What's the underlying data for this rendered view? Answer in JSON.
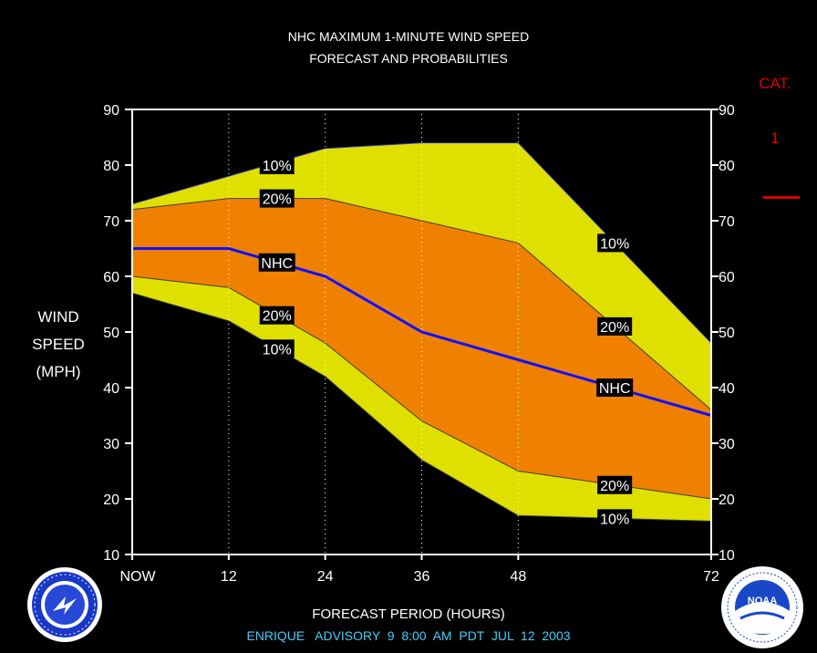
{
  "header": {
    "title_line1": "NHC MAXIMUM 1-MINUTE WIND SPEED",
    "title_line2": "FORECAST AND PROBABILITIES"
  },
  "y_axis_label": [
    "WIND",
    "SPEED",
    "(MPH)"
  ],
  "x_axis_label": "FORECAST PERIOD (HOURS)",
  "advisory_line": "ENRIQUE   ADVISORY  9  8:00  AM  PDT  JUL  12  2003",
  "category": {
    "title": "CAT.",
    "value": "1",
    "line_color": "#e00000"
  },
  "colors": {
    "yellow": "#e0e000",
    "orange": "#f08000",
    "nhc_line": "#1010ff",
    "axis": "#ffffff",
    "advisory_text": "#40d0ff"
  },
  "logos": {
    "left": {
      "name": "nws-logo",
      "text": "NATIONAL WEATHER SERVICE"
    },
    "right": {
      "name": "noaa-logo",
      "text": "NOAA"
    }
  },
  "chart_data": {
    "type": "area",
    "title": "NHC MAXIMUM 1-MINUTE WIND SPEED FORECAST AND PROBABILITIES",
    "xlabel": "FORECAST PERIOD (HOURS)",
    "ylabel": "WIND SPEED (MPH)",
    "xlim": [
      0,
      72
    ],
    "ylim": [
      10,
      90
    ],
    "x_ticks": [
      0,
      12,
      24,
      36,
      48,
      72
    ],
    "x_tick_labels": [
      "NOW",
      "12",
      "24",
      "36",
      "48",
      "72"
    ],
    "y_ticks": [
      10,
      20,
      30,
      40,
      50,
      60,
      70,
      80,
      90
    ],
    "grid_vertical_at": [
      12,
      24,
      36,
      48
    ],
    "x": [
      0,
      12,
      24,
      36,
      48,
      72
    ],
    "series": [
      {
        "name": "10%",
        "role": "upper",
        "values": [
          73,
          78,
          83,
          84,
          84,
          48
        ]
      },
      {
        "name": "20%",
        "role": "upper",
        "values": [
          72,
          74,
          74,
          70,
          66,
          36
        ]
      },
      {
        "name": "NHC",
        "role": "forecast",
        "values": [
          65,
          65,
          60,
          50,
          45,
          35
        ]
      },
      {
        "name": "20%",
        "role": "lower",
        "values": [
          60,
          58,
          48,
          34,
          25,
          20
        ]
      },
      {
        "name": "10%",
        "role": "lower",
        "values": [
          57,
          52,
          42,
          27,
          17,
          16
        ]
      }
    ],
    "line_labels": [
      {
        "text": "10%",
        "x": 18,
        "y": 80
      },
      {
        "text": "20%",
        "x": 18,
        "y": 74
      },
      {
        "text": "NHC",
        "x": 18,
        "y": 62.5
      },
      {
        "text": "20%",
        "x": 18,
        "y": 53
      },
      {
        "text": "10%",
        "x": 18,
        "y": 47
      },
      {
        "text": "10%",
        "x": 60,
        "y": 66
      },
      {
        "text": "20%",
        "x": 60,
        "y": 51
      },
      {
        "text": "NHC",
        "x": 60,
        "y": 40
      },
      {
        "text": "20%",
        "x": 60,
        "y": 22.5
      },
      {
        "text": "10%",
        "x": 60,
        "y": 16.5
      }
    ]
  }
}
